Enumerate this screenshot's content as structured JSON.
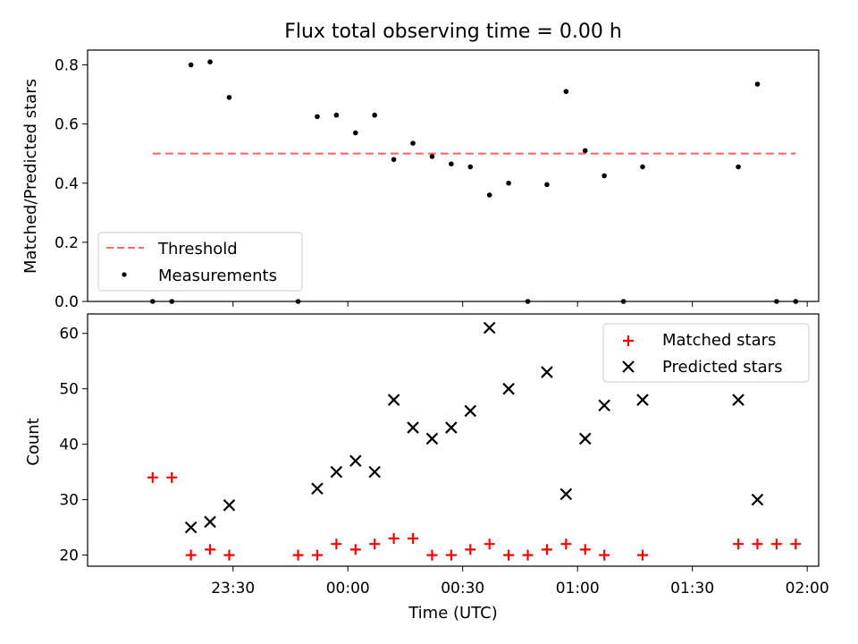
{
  "chart_data": {
    "title": "Flux total observing time = 0.00 h",
    "xlabel": "Time (UTC)",
    "x_tick_labels": [
      "23:30",
      "00:00",
      "00:30",
      "01:00",
      "01:30",
      "02:00"
    ],
    "x_ticks_minutes_from_23_00": [
      30,
      60,
      90,
      120,
      150,
      180
    ],
    "xlim_minutes_from_23_00": [
      -8,
      183
    ],
    "time": [
      "23:09",
      "23:14",
      "23:19",
      "23:24",
      "23:29",
      "23:47",
      "23:52",
      "23:57",
      "00:02",
      "00:07",
      "00:12",
      "00:17",
      "00:22",
      "00:27",
      "00:32",
      "00:37",
      "00:42",
      "00:47",
      "00:52",
      "00:57",
      "01:02",
      "01:07",
      "01:12",
      "01:17",
      "01:42",
      "01:47",
      "01:52",
      "01:57"
    ],
    "panels": [
      {
        "type": "line+scatter",
        "ylabel": "Matched/Predicted stars",
        "ylim": [
          0.0,
          0.85
        ],
        "y_ticks": [
          0.0,
          0.2,
          0.4,
          0.6,
          0.8
        ],
        "y_tick_labels": [
          "0.0",
          "0.2",
          "0.4",
          "0.6",
          "0.8"
        ],
        "legend_position": "lower-left",
        "series": [
          {
            "name": "Threshold",
            "kind": "dashed-line",
            "color": "#ff6666",
            "y": 0.5,
            "x_start": "23:09",
            "x_end": "01:57"
          },
          {
            "name": "Measurements",
            "kind": "dot",
            "color": "#000000",
            "values": [
              0.0,
              0.0,
              0.8,
              0.81,
              0.69,
              0.0,
              0.625,
              0.63,
              0.57,
              0.63,
              0.48,
              0.535,
              0.49,
              0.465,
              0.455,
              0.36,
              0.4,
              0.0,
              0.395,
              0.71,
              0.51,
              0.425,
              0.0,
              0.455,
              0.455,
              0.735,
              0.0,
              0.0
            ]
          }
        ]
      },
      {
        "type": "scatter",
        "ylabel": "Count",
        "ylim": [
          18,
          63.5
        ],
        "y_ticks": [
          20,
          30,
          40,
          50,
          60
        ],
        "y_tick_labels": [
          "20",
          "30",
          "40",
          "50",
          "60"
        ],
        "legend_position": "upper-right",
        "series": [
          {
            "name": "Matched stars",
            "marker": "+",
            "color": "#ff0000",
            "values": [
              34,
              34,
              20,
              21,
              20,
              20,
              20,
              22,
              21,
              22,
              23,
              23,
              20,
              20,
              21,
              22,
              20,
              20,
              21,
              22,
              21,
              20,
              null,
              20,
              22,
              22,
              22,
              22
            ]
          },
          {
            "name": "Predicted stars",
            "marker": "x",
            "color": "#000000",
            "values": [
              null,
              null,
              25,
              26,
              29,
              null,
              32,
              35,
              37,
              35,
              48,
              43,
              41,
              43,
              46,
              61,
              50,
              null,
              53,
              31,
              41,
              47,
              null,
              48,
              48,
              30,
              null,
              null
            ]
          }
        ]
      }
    ]
  }
}
